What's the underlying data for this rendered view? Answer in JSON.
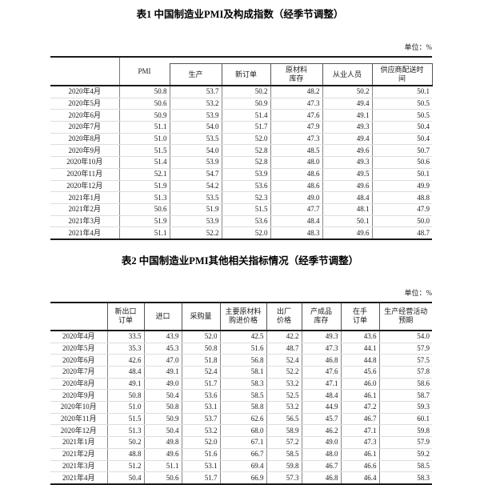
{
  "table1": {
    "title": "表1 中国制造业PMI及构成指数（经季节调整）",
    "unit_label": "单位：%",
    "columns": {
      "pmi": "PMI",
      "production": "生产",
      "new_orders": "新订单",
      "raw_materials_inventory": "原材料\n库存",
      "employment": "从业人员",
      "supplier_delivery_time": "供应商配送时\n间"
    },
    "rows": [
      {
        "month": "2020年4月",
        "values": [
          "50.8",
          "53.7",
          "50.2",
          "48.2",
          "50.2",
          "50.1"
        ]
      },
      {
        "month": "2020年5月",
        "values": [
          "50.6",
          "53.2",
          "50.9",
          "47.3",
          "49.4",
          "50.5"
        ]
      },
      {
        "month": "2020年6月",
        "values": [
          "50.9",
          "53.9",
          "51.4",
          "47.6",
          "49.1",
          "50.5"
        ]
      },
      {
        "month": "2020年7月",
        "values": [
          "51.1",
          "54.0",
          "51.7",
          "47.9",
          "49.3",
          "50.4"
        ]
      },
      {
        "month": "2020年8月",
        "values": [
          "51.0",
          "53.5",
          "52.0",
          "47.3",
          "49.4",
          "50.4"
        ]
      },
      {
        "month": "2020年9月",
        "values": [
          "51.5",
          "54.0",
          "52.8",
          "48.5",
          "49.6",
          "50.7"
        ]
      },
      {
        "month": "2020年10月",
        "values": [
          "51.4",
          "53.9",
          "52.8",
          "48.0",
          "49.3",
          "50.6"
        ]
      },
      {
        "month": "2020年11月",
        "values": [
          "52.1",
          "54.7",
          "53.9",
          "48.6",
          "49.5",
          "50.1"
        ]
      },
      {
        "month": "2020年12月",
        "values": [
          "51.9",
          "54.2",
          "53.6",
          "48.6",
          "49.6",
          "49.9"
        ]
      },
      {
        "month": "2021年1月",
        "values": [
          "51.3",
          "53.5",
          "52.3",
          "49.0",
          "48.4",
          "48.8"
        ]
      },
      {
        "month": "2021年2月",
        "values": [
          "50.6",
          "51.9",
          "51.5",
          "47.7",
          "48.1",
          "47.9"
        ]
      },
      {
        "month": "2021年3月",
        "values": [
          "51.9",
          "53.9",
          "53.6",
          "48.4",
          "50.1",
          "50.0"
        ]
      },
      {
        "month": "2021年4月",
        "values": [
          "51.1",
          "52.2",
          "52.0",
          "48.3",
          "49.6",
          "48.7"
        ]
      }
    ]
  },
  "table2": {
    "title": "表2 中国制造业PMI其他相关指标情况（经季节调整）",
    "unit_label": "单位：%",
    "columns": {
      "new_export_orders": "新出口\n订单",
      "imports": "进口",
      "purchasing_volume": "采购量",
      "main_raw_material_purchase_price": "主要原材料\n购进价格",
      "ex_factory_price": "出厂\n价格",
      "finished_goods_inventory": "产成品\n库存",
      "orders_in_hand": "在手\n订单",
      "production_business_activity_expectation": "生产经营活动\n预期"
    },
    "rows": [
      {
        "month": "2020年4月",
        "values": [
          "33.5",
          "43.9",
          "52.0",
          "42.5",
          "42.2",
          "49.3",
          "43.6",
          "54.0"
        ]
      },
      {
        "month": "2020年5月",
        "values": [
          "35.3",
          "45.3",
          "50.8",
          "51.6",
          "48.7",
          "47.3",
          "44.1",
          "57.9"
        ]
      },
      {
        "month": "2020年6月",
        "values": [
          "42.6",
          "47.0",
          "51.8",
          "56.8",
          "52.4",
          "46.8",
          "44.8",
          "57.5"
        ]
      },
      {
        "month": "2020年7月",
        "values": [
          "48.4",
          "49.1",
          "52.4",
          "58.1",
          "52.2",
          "47.6",
          "45.6",
          "57.8"
        ]
      },
      {
        "month": "2020年8月",
        "values": [
          "49.1",
          "49.0",
          "51.7",
          "58.3",
          "53.2",
          "47.1",
          "46.0",
          "58.6"
        ]
      },
      {
        "month": "2020年9月",
        "values": [
          "50.8",
          "50.4",
          "53.6",
          "58.5",
          "52.5",
          "48.4",
          "46.1",
          "58.7"
        ]
      },
      {
        "month": "2020年10月",
        "values": [
          "51.0",
          "50.8",
          "53.1",
          "58.8",
          "53.2",
          "44.9",
          "47.2",
          "59.3"
        ]
      },
      {
        "month": "2020年11月",
        "values": [
          "51.5",
          "50.9",
          "53.7",
          "62.6",
          "56.5",
          "45.7",
          "46.7",
          "60.1"
        ]
      },
      {
        "month": "2020年12月",
        "values": [
          "51.3",
          "50.4",
          "53.2",
          "68.0",
          "58.9",
          "46.2",
          "47.1",
          "59.8"
        ]
      },
      {
        "month": "2021年1月",
        "values": [
          "50.2",
          "49.8",
          "52.0",
          "67.1",
          "57.2",
          "49.0",
          "47.3",
          "57.9"
        ]
      },
      {
        "month": "2021年2月",
        "values": [
          "48.8",
          "49.6",
          "51.6",
          "66.7",
          "58.5",
          "48.0",
          "46.1",
          "59.2"
        ]
      },
      {
        "month": "2021年3月",
        "values": [
          "51.2",
          "51.1",
          "53.1",
          "69.4",
          "59.8",
          "46.7",
          "46.6",
          "58.5"
        ]
      },
      {
        "month": "2021年4月",
        "values": [
          "50.4",
          "50.6",
          "51.7",
          "66.9",
          "57.3",
          "46.8",
          "46.4",
          "58.3"
        ]
      }
    ]
  }
}
